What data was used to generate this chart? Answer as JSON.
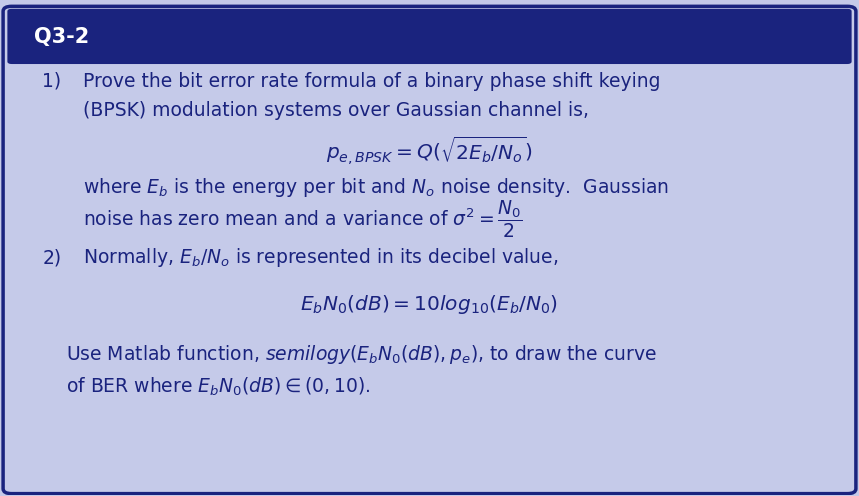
{
  "title": "Q3-2",
  "title_bg_color": "#1a237e",
  "title_text_color": "#ffffff",
  "body_bg_color": "#c5cae9",
  "border_color": "#1a237e",
  "text_color": "#1a237e",
  "figsize": [
    8.59,
    4.96
  ],
  "dpi": 100,
  "title_fontsize": 15,
  "body_fontsize": 13.5,
  "formula_fontsize": 14.5
}
